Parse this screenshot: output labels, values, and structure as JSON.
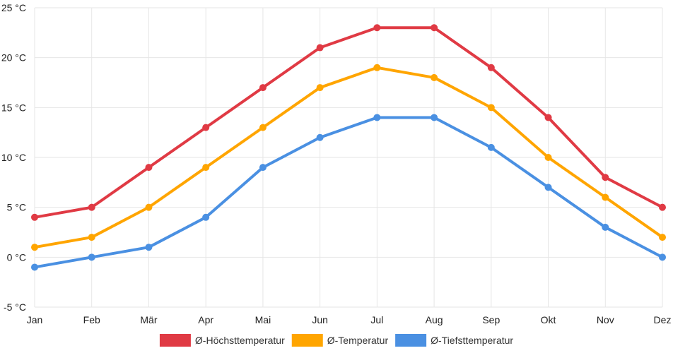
{
  "colors": {
    "max": "#e03a44",
    "avg": "#ffa500",
    "min": "#4a90e2",
    "grid": "#e6e6e6"
  },
  "chart_data": {
    "type": "line",
    "title": "",
    "xlabel": "",
    "ylabel": "",
    "categories": [
      "Jan",
      "Feb",
      "Mär",
      "Apr",
      "Mai",
      "Jun",
      "Jul",
      "Aug",
      "Sep",
      "Okt",
      "Nov",
      "Dez"
    ],
    "y_ticks": [
      25,
      20,
      15,
      10,
      5,
      0,
      -5
    ],
    "y_tick_labels": [
      "25 °C",
      "20 °C",
      "15 °C",
      "10 °C",
      "5 °C",
      "0 °C",
      "-5 °C"
    ],
    "ylim": [
      -5,
      25
    ],
    "grid": true,
    "legend_position": "bottom",
    "series": [
      {
        "key": "max",
        "name": "Ø-Höchsttemperatur",
        "color": "#e03a44",
        "values": [
          4,
          5,
          9,
          13,
          17,
          21,
          23,
          23,
          19,
          14,
          8,
          5
        ]
      },
      {
        "key": "avg",
        "name": "Ø-Temperatur",
        "color": "#ffa500",
        "values": [
          1,
          2,
          5,
          9,
          13,
          17,
          19,
          18,
          15,
          10,
          6,
          2
        ]
      },
      {
        "key": "min",
        "name": "Ø-Tiefsttemperatur",
        "color": "#4a90e2",
        "values": [
          -1,
          0,
          1,
          4,
          9,
          12,
          14,
          14,
          11,
          7,
          3,
          0
        ]
      }
    ]
  }
}
